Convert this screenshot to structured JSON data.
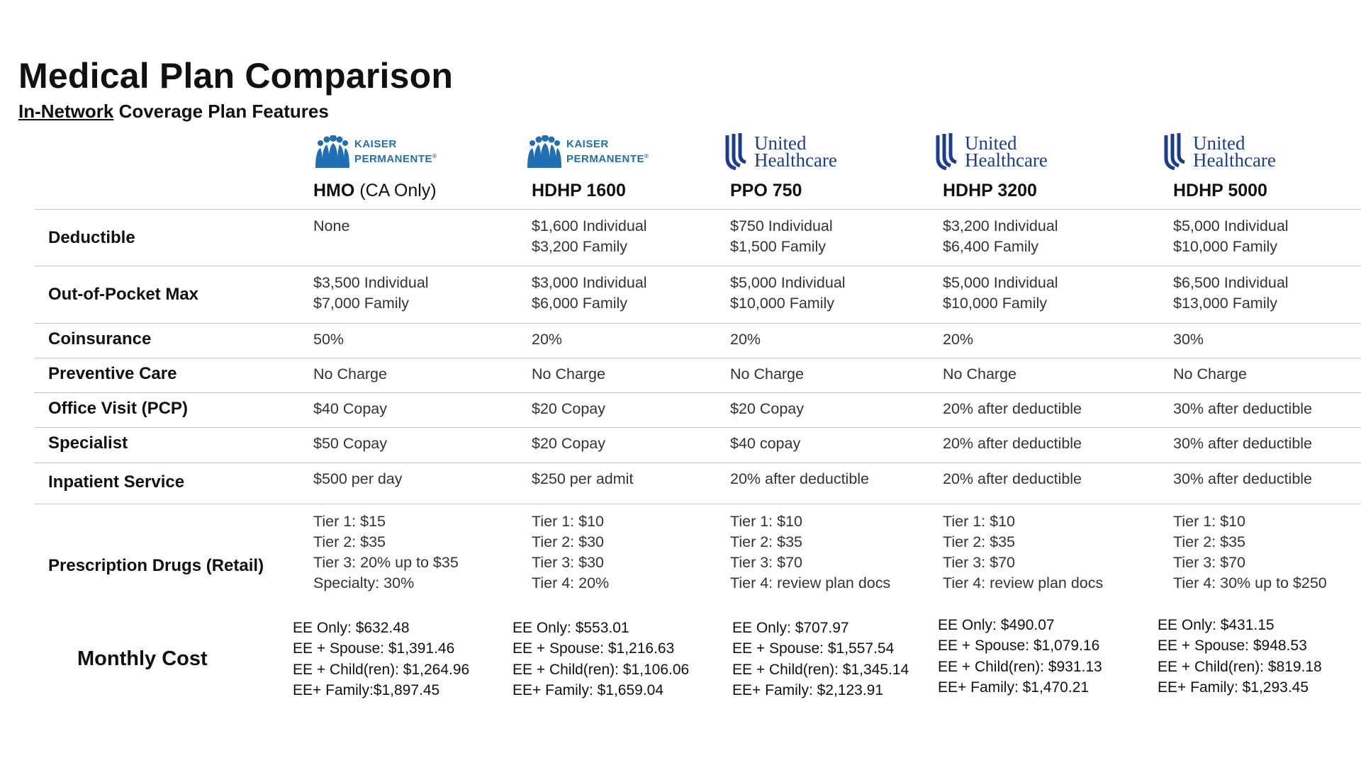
{
  "title": "Medical Plan Comparison",
  "subtitle": {
    "underlined": "In-Network",
    "rest": " Coverage Plan Features"
  },
  "carriers": {
    "kaiser": {
      "line1": "KAISER",
      "line2": "PERMANENTE",
      "mark": "®",
      "color": "#1f6fb5"
    },
    "uhc": {
      "line1": "United",
      "line2": "Healthcare",
      "color": "#1b3d91"
    }
  },
  "plans": [
    {
      "carrier": "kaiser",
      "name": "HMO",
      "name_suffix": " (CA Only)"
    },
    {
      "carrier": "kaiser",
      "name": "HDHP 1600",
      "name_suffix": ""
    },
    {
      "carrier": "uhc",
      "name": "PPO 750",
      "name_suffix": ""
    },
    {
      "carrier": "uhc",
      "name": "HDHP 3200",
      "name_suffix": ""
    },
    {
      "carrier": "uhc",
      "name": "HDHP 5000",
      "name_suffix": ""
    }
  ],
  "rows": [
    {
      "label": "Deductible",
      "values": [
        [
          "None"
        ],
        [
          "$1,600 Individual",
          "$3,200 Family"
        ],
        [
          "$750 Individual",
          "$1,500 Family"
        ],
        [
          "$3,200 Individual",
          "$6,400 Family"
        ],
        [
          "$5,000 Individual",
          "$10,000 Family"
        ]
      ]
    },
    {
      "label": "Out-of-Pocket Max",
      "values": [
        [
          "$3,500 Individual",
          "$7,000 Family"
        ],
        [
          "$3,000 Individual",
          "$6,000 Family"
        ],
        [
          "$5,000 Individual",
          "$10,000 Family"
        ],
        [
          "$5,000 Individual",
          "$10,000 Family"
        ],
        [
          "$6,500 Individual",
          "$13,000 Family"
        ]
      ]
    },
    {
      "label": "Coinsurance",
      "values": [
        [
          "50%"
        ],
        [
          "20%"
        ],
        [
          "20%"
        ],
        [
          "20%"
        ],
        [
          "30%"
        ]
      ]
    },
    {
      "label": "Preventive Care",
      "values": [
        [
          "No Charge"
        ],
        [
          "No Charge"
        ],
        [
          "No Charge"
        ],
        [
          "No Charge"
        ],
        [
          "No Charge"
        ]
      ]
    },
    {
      "label": "Office Visit (PCP)",
      "values": [
        [
          "$40 Copay"
        ],
        [
          "$20 Copay"
        ],
        [
          "$20 Copay"
        ],
        [
          "20% after deductible"
        ],
        [
          "30% after deductible"
        ]
      ]
    },
    {
      "label": "Specialist",
      "values": [
        [
          "$50 Copay"
        ],
        [
          "$20 Copay"
        ],
        [
          "$40 copay"
        ],
        [
          "20% after deductible"
        ],
        [
          "30% after deductible"
        ]
      ]
    },
    {
      "label": "Inpatient Service",
      "values": [
        [
          "$500 per day"
        ],
        [
          "$250 per admit"
        ],
        [
          "20% after deductible"
        ],
        [
          "20% after deductible"
        ],
        [
          "30% after deductible"
        ]
      ]
    },
    {
      "label": "Prescription Drugs (Retail)",
      "values": [
        [
          "Tier 1: $15",
          "Tier 2: $35",
          "Tier 3: 20% up to $35",
          "Specialty: 30%"
        ],
        [
          "Tier 1: $10",
          "Tier 2: $30",
          "Tier 3: $30",
          "Tier 4: 20%"
        ],
        [
          "Tier 1: $10",
          "Tier 2: $35",
          "Tier 3: $70",
          "Tier 4: review plan docs"
        ],
        [
          "Tier 1: $10",
          "Tier 2: $35",
          "Tier 3: $70",
          "Tier 4: review plan docs"
        ],
        [
          "Tier 1: $10",
          "Tier 2: $35",
          "Tier 3: $70",
          "Tier 4: 30% up to $250"
        ]
      ]
    }
  ],
  "monthly_cost": {
    "label": "Monthly Cost",
    "values": [
      [
        "EE Only: $632.48",
        "EE + Spouse: $1,391.46",
        "EE + Child(ren): $1,264.96",
        "EE+ Family:$1,897.45"
      ],
      [
        "EE Only: $553.01",
        "EE + Spouse: $1,216.63",
        "EE + Child(ren): $1,106.06",
        "EE+ Family: $1,659.04"
      ],
      [
        "EE Only: $707.97",
        "EE + Spouse: $1,557.54",
        "EE + Child(ren): $1,345.14",
        "EE+ Family: $2,123.91"
      ],
      [
        "EE Only: $490.07",
        "EE + Spouse: $1,079.16",
        "EE + Child(ren): $931.13",
        "EE+ Family: $1,470.21"
      ],
      [
        "EE Only: $431.15",
        "EE + Spouse: $948.53",
        "EE + Child(ren): $819.18",
        "EE+ Family: $1,293.45"
      ]
    ]
  }
}
